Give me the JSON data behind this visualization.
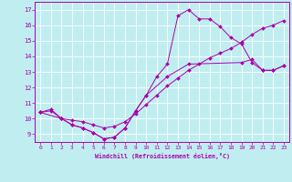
{
  "xlabel": "Windchill (Refroidissement éolien,°C)",
  "xlim": [
    -0.5,
    23.5
  ],
  "ylim": [
    8.5,
    17.5
  ],
  "yticks": [
    9,
    10,
    11,
    12,
    13,
    14,
    15,
    16,
    17
  ],
  "xticks": [
    0,
    1,
    2,
    3,
    4,
    5,
    6,
    7,
    8,
    9,
    10,
    11,
    12,
    13,
    14,
    15,
    16,
    17,
    18,
    19,
    20,
    21,
    22,
    23
  ],
  "bg_color": "#c0eef0",
  "grid_color": "#ffffff",
  "line_color": "#aa00aa",
  "lines": [
    {
      "x": [
        0,
        1,
        2,
        3,
        4,
        5,
        6,
        7,
        8,
        9,
        10,
        11,
        12,
        13,
        14,
        15,
        16,
        17,
        18,
        19,
        20,
        21,
        22,
        23
      ],
      "y": [
        10.4,
        10.6,
        10.0,
        9.6,
        9.4,
        9.1,
        8.7,
        8.8,
        9.4,
        10.5,
        11.5,
        12.7,
        13.5,
        16.6,
        17.0,
        16.4,
        16.4,
        15.9,
        15.2,
        14.8,
        13.6,
        13.1,
        13.1,
        13.4
      ]
    },
    {
      "x": [
        0,
        1,
        2,
        3,
        4,
        5,
        6,
        7,
        8,
        9,
        10,
        11,
        12,
        13,
        14,
        15,
        16,
        17,
        18,
        19,
        20,
        21,
        22,
        23
      ],
      "y": [
        10.4,
        10.5,
        10.0,
        9.9,
        9.8,
        9.6,
        9.4,
        9.5,
        9.8,
        10.3,
        10.9,
        11.5,
        12.1,
        12.6,
        13.1,
        13.5,
        13.9,
        14.2,
        14.5,
        14.9,
        15.4,
        15.8,
        16.0,
        16.3
      ]
    },
    {
      "x": [
        0,
        2,
        3,
        4,
        5,
        6,
        7,
        8,
        9,
        10,
        12,
        14,
        19,
        20,
        21,
        22,
        23
      ],
      "y": [
        10.4,
        10.0,
        9.6,
        9.4,
        9.1,
        8.7,
        8.8,
        9.4,
        10.5,
        11.5,
        12.7,
        13.5,
        13.6,
        13.8,
        13.1,
        13.1,
        13.4
      ]
    }
  ]
}
